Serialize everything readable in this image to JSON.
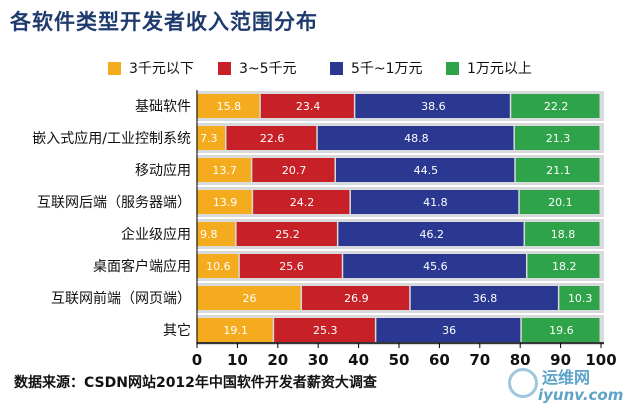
{
  "title": "各软件类型开发者收入范围分布",
  "source": "数据来源：CSDN网站2012年中国软件开发者薪资大调查",
  "watermark": {
    "cn": "运维网",
    "url": "iyunv.com"
  },
  "colors": {
    "series": [
      "#f5ab1e",
      "#c72127",
      "#2a3891",
      "#2ea34a"
    ],
    "row_band": "#d9dadc",
    "axis": "#000000"
  },
  "chart_data": {
    "type": "bar",
    "orientation": "horizontal",
    "stacked": true,
    "categories": [
      "基础软件",
      "嵌入式应用/工业控制系统",
      "移动应用",
      "互联网后端（服务器端）",
      "企业级应用",
      "桌面客户端应用",
      "互联网前端（网页端）",
      "其它"
    ],
    "series": [
      {
        "name": "3千元以下",
        "values": [
          15.8,
          7.3,
          13.7,
          13.9,
          9.8,
          10.6,
          26,
          19.1
        ]
      },
      {
        "name": "3~5千元",
        "values": [
          23.4,
          22.6,
          20.7,
          24.2,
          25.2,
          25.6,
          26.9,
          25.3
        ]
      },
      {
        "name": "5千~1万元",
        "values": [
          38.6,
          48.8,
          44.5,
          41.8,
          46.2,
          45.6,
          36.8,
          36
        ]
      },
      {
        "name": "1万元以上",
        "values": [
          22.2,
          21.3,
          21.1,
          20.1,
          18.8,
          18.2,
          10.3,
          19.6
        ]
      }
    ],
    "xlim": [
      0,
      100
    ],
    "xticks": [
      0,
      10,
      20,
      30,
      40,
      50,
      60,
      70,
      80,
      90,
      100
    ],
    "legend_position": "top",
    "grid": false
  }
}
